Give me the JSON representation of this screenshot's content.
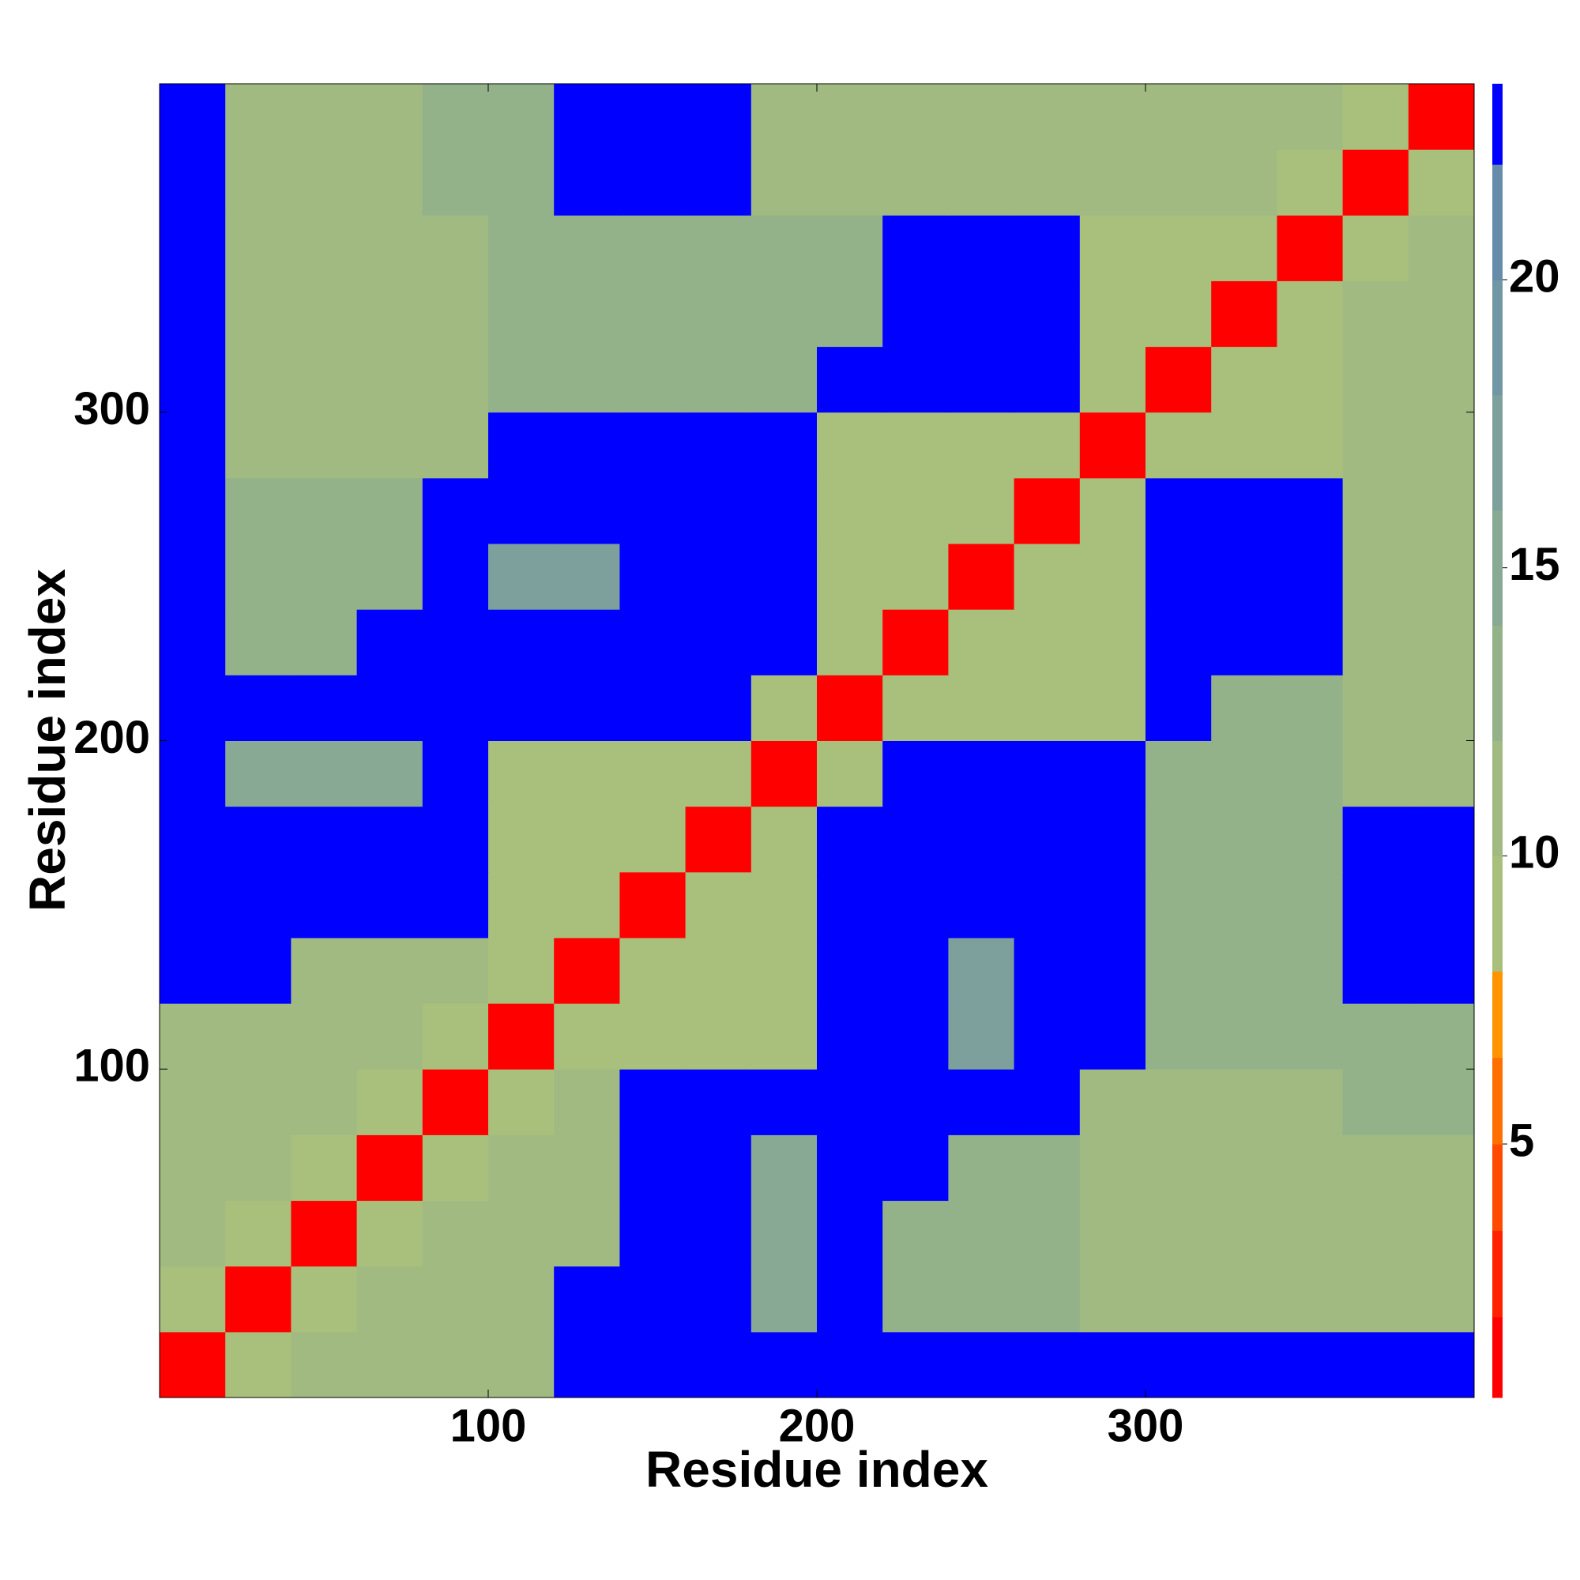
{
  "chart_data": {
    "type": "heatmap",
    "x_label": "Residue index",
    "y_label": "Residue index",
    "xbins": [
      0,
      20,
      40,
      60,
      80,
      100,
      120,
      140,
      160,
      180,
      200,
      220,
      240,
      260,
      280,
      300,
      320,
      340,
      360,
      380,
      400
    ],
    "ybins": [
      0,
      20,
      40,
      60,
      80,
      100,
      120,
      140,
      160,
      180,
      200,
      220,
      240,
      260,
      280,
      300,
      320,
      340,
      360,
      380,
      400
    ],
    "xlim": [
      0,
      400
    ],
    "ylim": [
      0,
      400
    ],
    "xticks": [
      100,
      200,
      300
    ],
    "yticks": [
      100,
      200,
      300
    ],
    "values": [
      [
        2,
        10,
        11,
        11,
        11,
        11,
        23,
        23,
        23,
        23,
        23,
        23,
        23,
        23,
        23,
        23,
        23,
        23,
        23,
        23
      ],
      [
        10,
        2,
        10,
        11,
        11,
        11,
        23,
        23,
        23,
        15,
        23,
        14,
        13,
        13,
        12,
        12,
        12,
        12,
        12,
        12
      ],
      [
        11,
        10,
        2,
        10,
        11,
        11,
        12,
        23,
        23,
        15,
        23,
        14,
        13,
        13,
        12,
        12,
        12,
        12,
        12,
        12
      ],
      [
        11,
        11,
        10,
        2,
        10,
        11,
        12,
        23,
        23,
        15,
        23,
        23,
        13,
        13,
        12,
        12,
        12,
        12,
        12,
        12
      ],
      [
        11,
        11,
        11,
        10,
        2,
        10,
        12,
        23,
        23,
        23,
        23,
        23,
        23,
        23,
        12,
        12,
        12,
        12,
        13,
        13
      ],
      [
        11,
        11,
        11,
        11,
        10,
        2,
        10,
        10,
        10,
        10,
        23,
        23,
        18,
        23,
        23,
        13,
        13,
        13,
        13,
        13
      ],
      [
        23,
        23,
        12,
        12,
        12,
        10,
        2,
        10,
        10,
        10,
        23,
        23,
        18,
        23,
        23,
        13,
        13,
        13,
        23,
        23
      ],
      [
        23,
        23,
        23,
        23,
        23,
        10,
        10,
        2,
        10,
        10,
        23,
        23,
        23,
        23,
        23,
        13,
        13,
        13,
        23,
        23
      ],
      [
        23,
        23,
        23,
        23,
        23,
        10,
        10,
        10,
        2,
        10,
        23,
        23,
        23,
        23,
        23,
        13,
        13,
        13,
        23,
        23
      ],
      [
        23,
        15,
        15,
        15,
        23,
        10,
        10,
        10,
        10,
        2,
        10,
        23,
        23,
        23,
        23,
        13,
        13,
        13,
        12,
        12
      ],
      [
        23,
        23,
        23,
        23,
        23,
        23,
        23,
        23,
        23,
        10,
        2,
        10,
        10,
        10,
        10,
        23,
        13,
        13,
        12,
        12
      ],
      [
        23,
        14,
        14,
        23,
        23,
        23,
        23,
        23,
        23,
        23,
        10,
        2,
        10,
        10,
        10,
        23,
        23,
        23,
        12,
        12
      ],
      [
        23,
        13,
        13,
        13,
        23,
        18,
        18,
        23,
        23,
        23,
        10,
        10,
        2,
        10,
        10,
        23,
        23,
        23,
        12,
        12
      ],
      [
        23,
        13,
        13,
        13,
        23,
        23,
        23,
        23,
        23,
        23,
        10,
        10,
        10,
        2,
        10,
        23,
        23,
        23,
        12,
        12
      ],
      [
        23,
        12,
        12,
        12,
        12,
        23,
        23,
        23,
        23,
        23,
        10,
        10,
        10,
        10,
        2,
        10,
        10,
        10,
        12,
        12
      ],
      [
        23,
        12,
        12,
        12,
        12,
        13,
        13,
        13,
        13,
        13,
        23,
        23,
        23,
        23,
        10,
        2,
        10,
        10,
        12,
        12
      ],
      [
        23,
        12,
        12,
        12,
        12,
        13,
        13,
        13,
        13,
        13,
        13,
        23,
        23,
        23,
        10,
        10,
        2,
        10,
        12,
        12
      ],
      [
        23,
        12,
        12,
        12,
        12,
        13,
        13,
        13,
        13,
        13,
        13,
        23,
        23,
        23,
        10,
        10,
        10,
        2,
        10,
        12
      ],
      [
        23,
        12,
        12,
        12,
        13,
        13,
        23,
        23,
        23,
        12,
        12,
        12,
        12,
        12,
        12,
        12,
        12,
        10,
        2,
        10
      ],
      [
        23,
        12,
        12,
        12,
        13,
        13,
        23,
        23,
        23,
        12,
        12,
        12,
        12,
        12,
        12,
        12,
        12,
        12,
        10,
        2
      ]
    ],
    "levels": [
      0.6,
      2,
      3.5,
      5,
      6.5,
      8,
      10,
      12,
      14,
      16,
      18,
      20,
      22,
      23.4
    ],
    "level_colors": [
      "#ff0000",
      "#ff2200",
      "#ff4a00",
      "#ff7000",
      "#ff9400",
      "#a9c07c",
      "#a0ba82",
      "#94b28a",
      "#88a993",
      "#7da09c",
      "#7196a4",
      "#668bab",
      "#0000ff"
    ],
    "clim": [
      0.6,
      23.4
    ],
    "cticks": [
      5,
      10,
      15,
      20
    ]
  }
}
